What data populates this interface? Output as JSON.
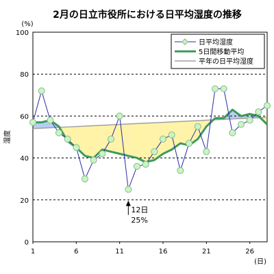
{
  "chart_data": {
    "type": "line",
    "title": "2月の日立市役所における日平均湿度の推移",
    "ylabel": "湿度",
    "y_unit": "(%)",
    "x_unit": "(日)",
    "ylim": [
      0,
      100
    ],
    "xlim": [
      1,
      28
    ],
    "y_ticks": [
      "0",
      "20",
      "40",
      "60",
      "80",
      "100"
    ],
    "x_ticks": [
      "1",
      "6",
      "11",
      "16",
      "21",
      "26"
    ],
    "grid": "horizontal dashed",
    "legend": "top-right",
    "x": [
      1,
      2,
      3,
      4,
      5,
      6,
      7,
      8,
      9,
      10,
      11,
      12,
      13,
      14,
      15,
      16,
      17,
      18,
      19,
      20,
      21,
      22,
      23,
      24,
      25,
      26,
      27,
      28
    ],
    "series": [
      {
        "name": "日平均湿度",
        "color": "#2a2aa8",
        "marker": "circle",
        "values": [
          57,
          72,
          58,
          52,
          49,
          45,
          30,
          39,
          42,
          49,
          60,
          25,
          36,
          37,
          43,
          49,
          51,
          34,
          47,
          55,
          43,
          73,
          73,
          52,
          56,
          58,
          62,
          65
        ]
      },
      {
        "name": "5日間移動平均",
        "color": "#3c9a5a",
        "values": [
          57,
          57,
          58,
          55,
          48,
          45,
          41,
          40,
          44,
          43,
          42,
          41,
          40,
          38,
          39,
          42,
          44,
          47,
          46,
          49,
          55,
          59,
          59,
          63,
          60,
          61,
          60,
          56
        ]
      },
      {
        "name": "平年の日平均湿度",
        "color": "#a0a0a0",
        "values": [
          54,
          54.2,
          54.4,
          54.6,
          54.8,
          55,
          55.2,
          55.4,
          55.6,
          55.8,
          56,
          56.2,
          56.4,
          56.6,
          56.8,
          57,
          57.2,
          57.4,
          57.6,
          57.8,
          58,
          58.2,
          58.4,
          58.6,
          58.8,
          59,
          59.2,
          59.4
        ]
      }
    ],
    "annotation": {
      "day": 12,
      "line1": "12日",
      "line2": "25%"
    }
  }
}
